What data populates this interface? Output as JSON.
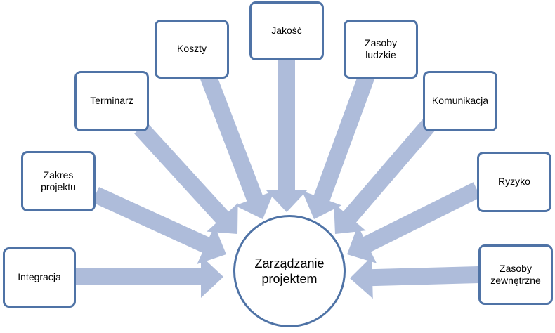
{
  "center_label": "Zarządzanie\nprojektem",
  "areas": [
    "Integracja",
    "Zakres\nprojektu",
    "Terminarz",
    "Koszty",
    "Jakość",
    "Zasoby\nludzkie",
    "Komunikacja",
    "Ryzyko",
    "Zasoby\nzewnętrzne"
  ],
  "colors": {
    "arrow": "#aebcda",
    "border": "#4f73a6"
  }
}
